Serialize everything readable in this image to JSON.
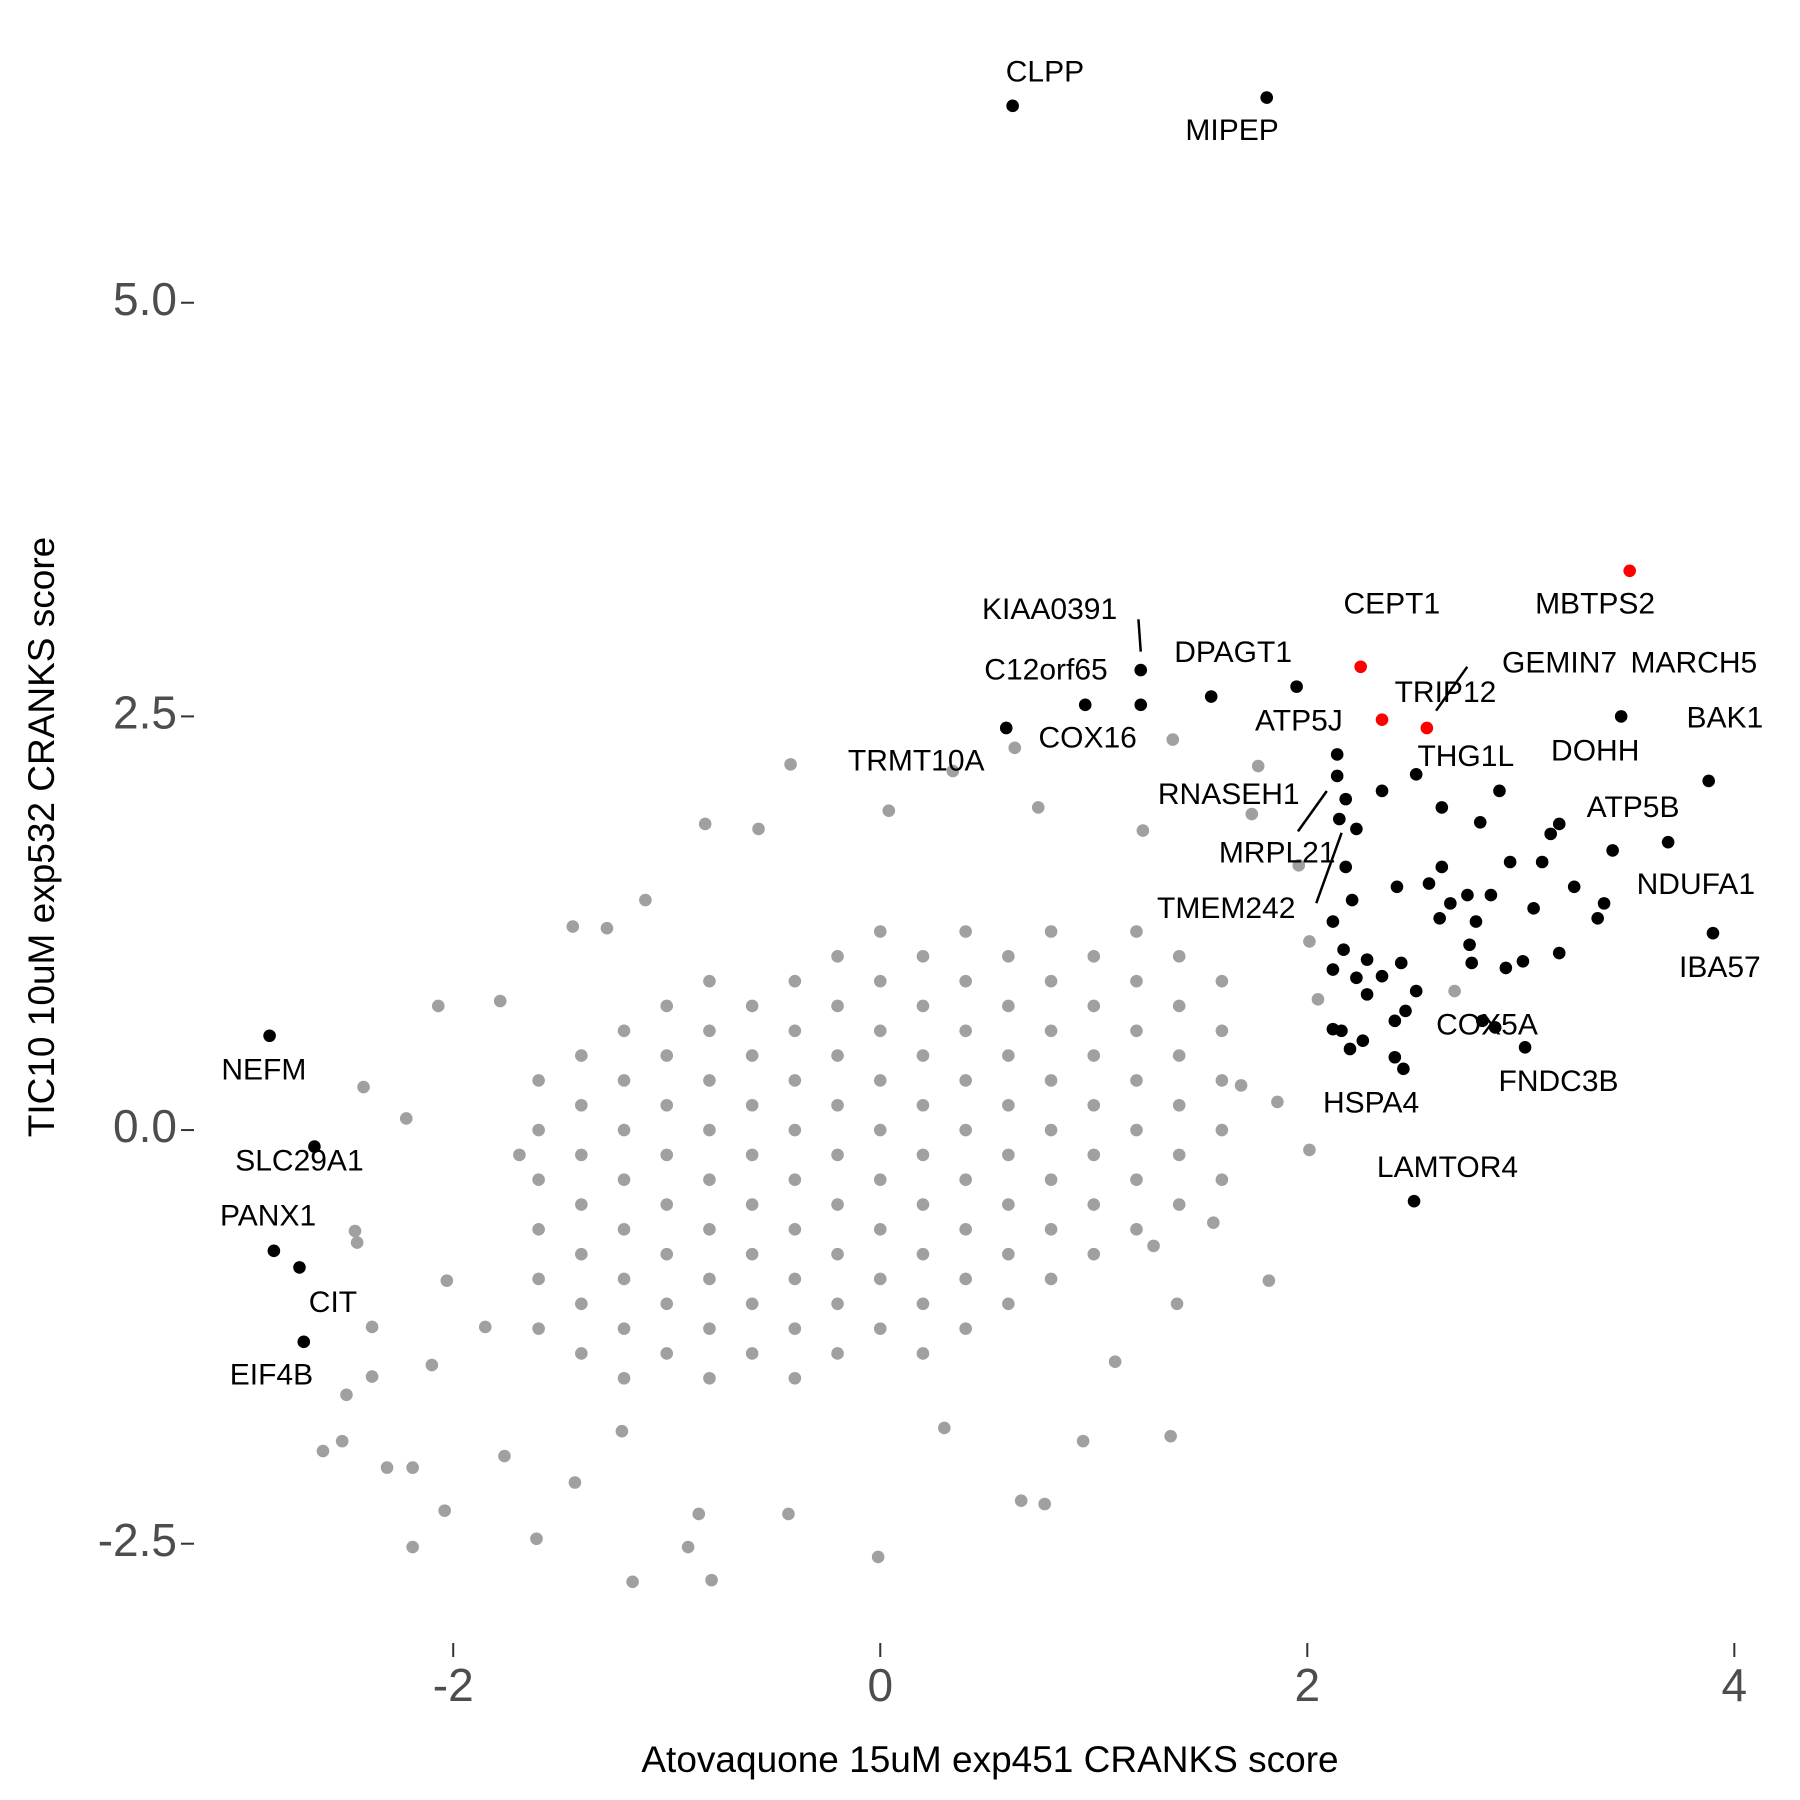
{
  "chart_data": {
    "type": "scatter",
    "xlabel": "Atovaquone 15uM exp451 CRANKS score",
    "ylabel": "TIC10 10uM exp532 CRANKS score",
    "xlim": [
      -3.2,
      4.05
    ],
    "ylim": [
      -3.1,
      6.6
    ],
    "xticks": [
      -2,
      0,
      2,
      4
    ],
    "yticks": [
      -2.5,
      {
        "value": 0,
        "label": "0.0"
      },
      2.5,
      {
        "value": 5,
        "label": "5.0"
      }
    ],
    "series": [
      {
        "color": "#a0a0a0",
        "x": [
          -1.6,
          -1.6,
          -1.6,
          -1.6,
          -1.6,
          -1.6,
          -1.4,
          -1.4,
          -1.4,
          -1.4,
          -1.4,
          -1.4,
          -1.4,
          -1.2,
          -1.2,
          -1.2,
          -1.2,
          -1.2,
          -1.2,
          -1.2,
          -1.2,
          -1.0,
          -1.0,
          -1.0,
          -1.0,
          -1.0,
          -1.0,
          -1.0,
          -1.0,
          -0.8,
          -0.8,
          -0.8,
          -0.8,
          -0.8,
          -0.8,
          -0.8,
          -0.8,
          -0.8,
          -0.6,
          -0.6,
          -0.6,
          -0.6,
          -0.6,
          -0.6,
          -0.6,
          -0.6,
          -0.4,
          -0.4,
          -0.4,
          -0.4,
          -0.4,
          -0.4,
          -0.4,
          -0.4,
          -0.4,
          -0.2,
          -0.2,
          -0.2,
          -0.2,
          -0.2,
          -0.2,
          -0.2,
          -0.2,
          -0.2,
          0,
          0,
          0,
          0,
          0,
          0,
          0,
          0,
          0,
          0.2,
          0.2,
          0.2,
          0.2,
          0.2,
          0.2,
          0.2,
          0.2,
          0.2,
          0.4,
          0.4,
          0.4,
          0.4,
          0.4,
          0.4,
          0.4,
          0.4,
          0.4,
          0.6,
          0.6,
          0.6,
          0.6,
          0.6,
          0.6,
          0.6,
          0.6,
          0.8,
          0.8,
          0.8,
          0.8,
          0.8,
          0.8,
          0.8,
          0.8,
          1.0,
          1.0,
          1.0,
          1.0,
          1.0,
          1.0,
          1.0,
          1.2,
          1.2,
          1.2,
          1.2,
          1.2,
          1.2,
          1.2,
          1.4,
          1.4,
          1.4,
          1.4,
          1.4,
          1.4,
          1.6,
          1.6,
          1.6,
          1.6,
          1.6,
          -0.42,
          0.04,
          0.34,
          0.63,
          1.37,
          1.77,
          -0.82,
          -0.57,
          -2.07,
          -2.42,
          -2.22,
          -1.44,
          -1.28,
          -1.78,
          -2.46,
          -2.45,
          -2.38,
          -2.38,
          -2.5,
          -2.52,
          -2.61,
          -2.31,
          -2.19,
          -2.04,
          -2.19,
          -1.61,
          -1.16,
          -0.9,
          -0.79,
          -0.85,
          -0.43,
          -0.01,
          0.66,
          0.77,
          0.95,
          1.36,
          1.1,
          1.39,
          1.82,
          2.01,
          1.86,
          2.05,
          2.01,
          1.96,
          1.74,
          -2.1,
          -2.03,
          -1.76,
          -1.43,
          0.3,
          -1.21,
          1.56,
          1.69,
          2.69,
          1.28,
          -1.1,
          0.74,
          1.23,
          -1.69,
          -1.85
        ],
        "values": [
          -1.2,
          -0.9,
          -0.6,
          -0.3,
          0,
          0.3,
          -1.35,
          -1.05,
          -0.75,
          -0.45,
          -0.15,
          0.15,
          0.45,
          -1.5,
          -1.2,
          -0.9,
          -0.6,
          -0.3,
          0,
          0.3,
          0.6,
          -1.35,
          -1.05,
          -0.75,
          -0.45,
          -0.15,
          0.15,
          0.45,
          0.75,
          -1.5,
          -1.2,
          -0.9,
          -0.6,
          -0.3,
          0,
          0.3,
          0.6,
          0.9,
          -1.35,
          -1.05,
          -0.75,
          -0.45,
          -0.15,
          0.15,
          0.45,
          0.75,
          -1.5,
          -1.2,
          -0.9,
          -0.6,
          -0.3,
          0,
          0.3,
          0.6,
          0.9,
          -1.35,
          -1.05,
          -0.75,
          -0.45,
          -0.15,
          0.15,
          0.45,
          0.75,
          1.05,
          -1.2,
          -0.9,
          -0.6,
          -0.3,
          0,
          0.3,
          0.6,
          0.9,
          1.2,
          -1.35,
          -1.05,
          -0.75,
          -0.45,
          -0.15,
          0.15,
          0.45,
          0.75,
          1.05,
          -1.2,
          -0.9,
          -0.6,
          -0.3,
          0,
          0.3,
          0.6,
          0.9,
          1.2,
          -1.05,
          -0.75,
          -0.45,
          -0.15,
          0.15,
          0.45,
          0.75,
          1.05,
          -0.9,
          -0.6,
          -0.3,
          0,
          0.3,
          0.6,
          0.9,
          1.2,
          -0.75,
          -0.45,
          -0.15,
          0.15,
          0.45,
          0.75,
          1.05,
          -0.6,
          -0.3,
          0,
          0.3,
          0.6,
          0.9,
          1.2,
          -0.45,
          -0.15,
          0.15,
          0.45,
          0.75,
          1.05,
          -0.3,
          0,
          0.3,
          0.6,
          0.9,
          2.21,
          1.93,
          2.17,
          2.31,
          2.36,
          2.2,
          1.85,
          1.82,
          0.75,
          0.26,
          0.07,
          1.23,
          1.22,
          0.78,
          -0.61,
          -0.68,
          -1.19,
          -1.49,
          -1.6,
          -1.88,
          -1.94,
          -2.04,
          -2.04,
          -2.3,
          -2.52,
          -2.47,
          -2.73,
          -2.52,
          -2.72,
          -2.32,
          -2.32,
          -2.58,
          -2.24,
          -2.26,
          -1.88,
          -1.85,
          -1.4,
          -1.05,
          -0.91,
          -0.12,
          0.17,
          0.79,
          1.14,
          1.6,
          1.91,
          -1.42,
          -0.91,
          -1.97,
          -2.13,
          -1.8,
          -1.82,
          -0.56,
          0.27,
          0.84,
          -0.7,
          1.39,
          1.95,
          1.81,
          -0.15,
          -1.19
        ]
      },
      {
        "color": "#000000",
        "x": [
          0.62,
          1.81,
          1.22,
          0.96,
          1.22,
          0.59,
          1.55,
          1.95,
          3.47,
          3.88,
          2.9,
          3.18,
          3.69,
          3.9,
          2.51,
          2.14,
          2.14,
          2.15,
          2.82,
          3.02,
          2.45,
          2.5,
          -2.86,
          -2.65,
          -2.84,
          -2.72,
          -2.7,
          2.18,
          2.35,
          2.23,
          2.63,
          2.81,
          3.14,
          3.43,
          2.63,
          2.95,
          3.1,
          2.18,
          2.42,
          2.57,
          2.75,
          2.86,
          2.21,
          3.25,
          3.39,
          3.36,
          3.06,
          2.67,
          2.62,
          2.79,
          2.76,
          2.12,
          2.17,
          2.28,
          2.44,
          2.12,
          2.23,
          2.35,
          2.77,
          2.93,
          3.01,
          3.18,
          2.51,
          2.28,
          2.46,
          2.41,
          2.88,
          2.12,
          2.16,
          2.26,
          2.2,
          2.41
        ],
        "values": [
          6.19,
          6.24,
          2.78,
          2.57,
          2.57,
          2.43,
          2.62,
          2.68,
          2.5,
          2.11,
          2.05,
          1.85,
          1.74,
          1.19,
          2.15,
          2.27,
          2.14,
          1.88,
          0.66,
          0.5,
          0.37,
          -0.43,
          0.57,
          -0.1,
          -0.73,
          -0.83,
          -1.28,
          2.0,
          2.05,
          1.82,
          1.95,
          1.86,
          1.79,
          1.69,
          1.59,
          1.62,
          1.62,
          1.59,
          1.47,
          1.49,
          1.42,
          1.42,
          1.39,
          1.47,
          1.37,
          1.28,
          1.34,
          1.37,
          1.28,
          1.26,
          1.12,
          1.26,
          1.09,
          1.03,
          1.01,
          0.97,
          0.92,
          0.93,
          1.01,
          0.98,
          1.02,
          1.07,
          0.84,
          0.82,
          0.72,
          0.66,
          0.62,
          0.61,
          0.6,
          0.54,
          0.49,
          0.44
        ],
        "labels": [
          "CLPP",
          "MIPEP",
          "KIAA0391",
          "C12orf65",
          "COX16",
          "TRMT10A",
          "DPAGT1",
          "ATP5J",
          "MARCH5",
          "BAK1",
          "DOHH",
          "ATP5B",
          "NDUFA1",
          "IBA57",
          "THG1L",
          "RNASEH1",
          "MRPL21",
          "TMEM242",
          "COX5A",
          "FNDC3B",
          "HSPA4",
          "LAMTOR4",
          "NEFM",
          "SLC29A1",
          "PANX1",
          "CIT",
          "EIF4B",
          null,
          null,
          null,
          null,
          null,
          null,
          null,
          null,
          null,
          null,
          null,
          null,
          null,
          null,
          null,
          null,
          null,
          null,
          null,
          null,
          null,
          null,
          null,
          null,
          null,
          null,
          null,
          null,
          null,
          null,
          null,
          null,
          null,
          null,
          null,
          null,
          null,
          null,
          null,
          null,
          null,
          null,
          null,
          null,
          null
        ]
      },
      {
        "color": "#ff0000",
        "x": [
          3.51,
          2.25,
          2.35,
          2.56
        ],
        "values": [
          3.38,
          2.8,
          2.48,
          2.43
        ],
        "labels": [
          "MBTPS2",
          "CEPT1",
          "TRIP12",
          "GEMIN7"
        ]
      }
    ]
  }
}
